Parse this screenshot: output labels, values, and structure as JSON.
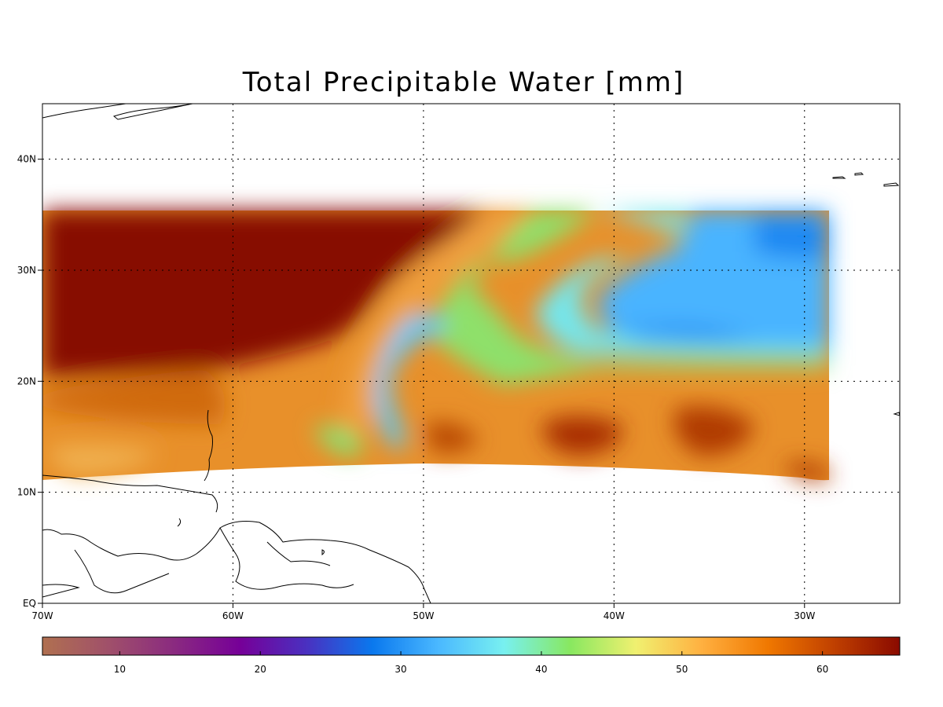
{
  "title": "Total Precipitable Water [mm]",
  "map": {
    "lon_range": [
      -70,
      -25
    ],
    "lat_range": [
      0,
      45
    ],
    "lon_ticks": [
      {
        "value": -70,
        "label": "70W"
      },
      {
        "value": -60,
        "label": "60W"
      },
      {
        "value": -50,
        "label": "50W"
      },
      {
        "value": -40,
        "label": "40W"
      },
      {
        "value": -30,
        "label": "30W"
      }
    ],
    "lat_ticks": [
      {
        "value": 0,
        "label": "EQ"
      },
      {
        "value": 10,
        "label": "10N"
      },
      {
        "value": 20,
        "label": "20N"
      },
      {
        "value": 30,
        "label": "30N"
      },
      {
        "value": 40,
        "label": "40N"
      }
    ],
    "gridlines": "dotted",
    "data_extent": {
      "lon": [
        -70,
        -29
      ],
      "lat_north": 35.5,
      "lat_south_west": 11,
      "lat_south_mid": 12.5,
      "lat_south_east": 11
    }
  },
  "colorbar": {
    "range": [
      4.5,
      65.5
    ],
    "ticks": [
      {
        "value": 10,
        "label": "10"
      },
      {
        "value": 20,
        "label": "20"
      },
      {
        "value": 30,
        "label": "30"
      },
      {
        "value": 40,
        "label": "40"
      },
      {
        "value": 50,
        "label": "50"
      },
      {
        "value": 60,
        "label": "60"
      }
    ],
    "colors": [
      "#b07050",
      "#a0506a",
      "#8a2a80",
      "#760098",
      "#4a30c0",
      "#0a78ee",
      "#4ab8ff",
      "#78f0f0",
      "#88e860",
      "#f0f070",
      "#ffb040",
      "#f07800",
      "#c04000",
      "#8a0a00"
    ]
  }
}
